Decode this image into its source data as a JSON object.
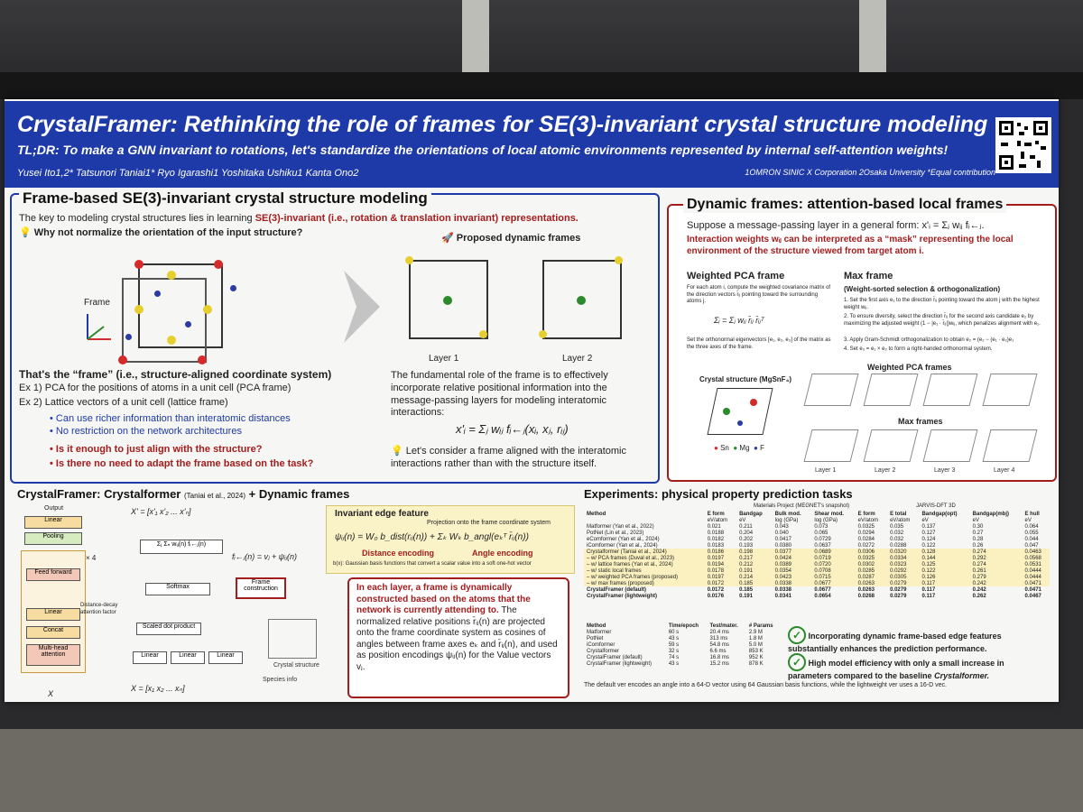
{
  "header": {
    "title": "CrystalFramer: Rethinking the role of frames for SE(3)-invariant crystal structure modeling",
    "tldr": "TL;DR: To make a GNN invariant to rotations, let's standardize the orientations of local atomic environments represented by internal self-attention weights!",
    "authors": "Yusei Ito1,2*     Tatsunori Taniai1*     Ryo Igarashi1     Yoshitaka Ushiku1     Kanta Ono2",
    "affiliations": "1OMRON SINIC X Corporation    2Osaka University    *Equal contribution"
  },
  "section1": {
    "title": "Frame-based SE(3)-invariant crystal structure modeling",
    "intro": "The key to modeling crystal structures lies in learning",
    "intro_red": "SE(3)-invariant (i.e., rotation & translation invariant) representations.",
    "question": "Why not normalize the orientation of the input structure?",
    "frame_label": "Frame",
    "proposed": "Proposed dynamic frames",
    "layer1": "Layer 1",
    "layer2": "Layer 2",
    "frame_def": "That's the “frame” (i.e., structure-aligned coordinate  system)",
    "ex1": "Ex 1) PCA for the positions of atoms in a unit cell (PCA frame)",
    "ex2": "Ex 2) Lattice vectors of a unit cell (lattice frame)",
    "pro1": "• Can use richer information than interatomic distances",
    "pro2": "• No restriction on the network architectures",
    "con1": "• Is it enough to just align with the structure?",
    "con2": "• Is there no need to adapt the frame based on the task?",
    "role": "The fundamental role of the frame is to effectively incorporate relative positional information into the message-passing layers for modeling interatomic interactions:",
    "formula": "x'ᵢ = Σⱼ wᵢⱼ fᵢ←ⱼ(xᵢ, xⱼ, rᵢⱼ)",
    "consider": "Let's consider a frame aligned with the interatomic interactions rather than with the structure itself."
  },
  "section2": {
    "title": "Dynamic frames: attention-based local frames",
    "line1": "Suppose a message-passing layer in a general form: x'ᵢ = Σⱼ wᵢⱼ fᵢ←ⱼ.",
    "line2": "Interaction weights wᵢⱼ can be interpreted as a “mask” representing the local environment of the structure viewed from target atom i.",
    "pca_title": "Weighted PCA frame",
    "pca_text": "For each atom i, compute the weighted covariance matrix of the direction vectors r̄ᵢⱼ pointing toward the surrounding atoms j.",
    "pca_formula": "Σᵢ = Σⱼ wᵢⱼ r̄ᵢⱼ r̄ᵢⱼᵀ",
    "pca_text2": "Set the orthonormal eigenvectors [e₁, e₂, e₃] of the matrix as the three axes of the frame.",
    "max_title": "Max frame",
    "max_sub": "(Weight-sorted selection & orthogonalization)",
    "max1": "1.  Set the first axis e₁ to the direction r̄ᵢⱼ pointing toward the atom j with the highest weight wᵢⱼ.",
    "max2": "2.  To ensure diversity, select the direction r̄ᵢⱼ for the second axis candidate e₂ by maximizing the adjusted weight (1 − |e₁ · r̄ᵢⱼ|)wᵢⱼ, which penalizes alignment with e₁.",
    "max3": "3.  Apply Gram-Schmidt orthogonalization to obtain e₂ = (e₂ − (e₁ · e₂)e₁",
    "max4": "4.  Set e₃ = e₁ × e₂ to form a right-handed orthonormal system.",
    "crystal": "Crystal structure (MgSnF₄)",
    "weighted_pca_frames": "Weighted PCA frames",
    "max_frames": "Max frames",
    "legend": [
      "Sn",
      "Mg",
      "F"
    ],
    "layers": [
      "Layer 1",
      "Layer 2",
      "Layer 3",
      "Layer 4"
    ]
  },
  "section3": {
    "title": "CrystalFramer: Crystalformer",
    "cite": "(Taniai et al., 2024)",
    "plus": "+ Dynamic frames",
    "blocks": [
      "Output",
      "Linear",
      "Pooling",
      "Feed forward",
      "Linear",
      "Concat",
      "Multi-head attention"
    ],
    "times4": "× 4",
    "x_label": "X",
    "xp": "X' = [x'₁   x'₂   ...   x'ₙ]",
    "xin": "X = [x₁   x₂   ...   xₙ]",
    "softmax": "Softmax",
    "sdp": "Scaled dot product",
    "linear": "Linear",
    "frame_construction": "Frame construction",
    "distance_decay": "Distance-decay attention factor",
    "crystal_structure": "Crystal structure",
    "species_info": "Species info",
    "f_formula": "fᵢ←ⱼ(n) = vⱼ + ψᵢⱼ(n)",
    "edge_title": "Invariant edge feature",
    "edge_proj": "Projection onto the frame coordinate system",
    "edge_formula": "ψᵢⱼ(n) = W₀ b_dist(rᵢⱼ(n)) + Σₖ Wₖ b_angl(eₖᵀ r̄ᵢⱼ(n))",
    "dist_enc": "Distance encoding",
    "angle_enc": "Angle encoding",
    "basis": "b(x): Gaussian basis functions that convert a scalar value into a soft one-hot vector",
    "explain_red": "In each layer, a frame is dynamically constructed based on the atoms that the network is currently attending to.",
    "explain": "The normalized relative positions r̄ᵢⱼ(n) are projected onto the frame coordinate system as cosines of angles between frame axes eₖ and r̄ᵢⱼ(n), and used as position encodings ψᵢⱼ(n) for the Value vectors vⱼ."
  },
  "section4": {
    "title": "Experiments: physical property prediction tasks",
    "group1": "Materials Project (MEGNET's snapshot)",
    "group2": "JARVIS-DFT 3D",
    "cols": [
      "Method",
      "E form",
      "Bandgap",
      "Bulk mod.",
      "Shear mod.",
      "E form",
      "E total",
      "Bandgap(opt)",
      "Bandgap(mbj)",
      "E hull"
    ],
    "units": [
      "",
      "eV/atom",
      "eV",
      "log (GPa)",
      "log (GPa)",
      "eV/atom",
      "eV/atom",
      "eV",
      "eV",
      "eV"
    ],
    "rows": [
      [
        "Matformer (Yan et al., 2022)",
        "0.021",
        "0.211",
        "0.043",
        "0.073",
        "0.0325",
        "0.035",
        "0.137",
        "0.30",
        "0.064"
      ],
      [
        "PotNet (Lin et al., 2023)",
        "0.0188",
        "0.204",
        "0.040",
        "0.065",
        "0.0294",
        "0.032",
        "0.127",
        "0.27",
        "0.055"
      ],
      [
        "eComformer (Yan et al., 2024)",
        "0.0182",
        "0.202",
        "0.0417",
        "0.0729",
        "0.0284",
        "0.032",
        "0.124",
        "0.28",
        "0.044"
      ],
      [
        "iComformer (Yan et al., 2024)",
        "0.0183",
        "0.193",
        "0.0380",
        "0.0637",
        "0.0272",
        "0.0288",
        "0.122",
        "0.26",
        "0.047"
      ],
      [
        "Crystalformer (Taniai et al., 2024)",
        "0.0186",
        "0.198",
        "0.0377",
        "0.0689",
        "0.0306",
        "0.0320",
        "0.128",
        "0.274",
        "0.0463"
      ],
      [
        "– w/ PCA frames (Duval et al., 2023)",
        "0.0197",
        "0.217",
        "0.0424",
        "0.0719",
        "0.0325",
        "0.0334",
        "0.144",
        "0.292",
        "0.0568"
      ],
      [
        "– w/ lattice frames (Yan et al., 2024)",
        "0.0194",
        "0.212",
        "0.0389",
        "0.0720",
        "0.0302",
        "0.0323",
        "0.125",
        "0.274",
        "0.0531"
      ],
      [
        "– w/ static local frames",
        "0.0178",
        "0.191",
        "0.0354",
        "0.0708",
        "0.0285",
        "0.0292",
        "0.122",
        "0.261",
        "0.0444"
      ],
      [
        "– w/ weighted PCA frames (proposed)",
        "0.0197",
        "0.214",
        "0.0423",
        "0.0715",
        "0.0287",
        "0.0305",
        "0.126",
        "0.279",
        "0.0444"
      ],
      [
        "– w/ max frames (proposed)",
        "0.0172",
        "0.185",
        "0.0338",
        "0.0677",
        "0.0263",
        "0.0279",
        "0.117",
        "0.242",
        "0.0471"
      ],
      [
        "CrystalFramer (default)",
        "0.0172",
        "0.185",
        "0.0338",
        "0.0677",
        "0.0263",
        "0.0279",
        "0.117",
        "0.242",
        "0.0471"
      ],
      [
        "CrystalFramer (lightweight)",
        "0.0176",
        "0.191",
        "0.0341",
        "0.0654",
        "0.0268",
        "0.0279",
        "0.117",
        "0.262",
        "0.0467"
      ]
    ],
    "eff_cols": [
      "Method",
      "Time/epoch",
      "Test/mater.",
      "# Params"
    ],
    "eff_rows": [
      [
        "Matformer",
        "60 s",
        "20.4 ms",
        "2.9 M"
      ],
      [
        "PotNet",
        "43 s",
        "313 ms",
        "1.8 M"
      ],
      [
        "iComformer",
        "59 s",
        "54.8 ms",
        "5.0 M"
      ],
      [
        "Crystalformer",
        "32 s",
        "6.6 ms",
        "853 K"
      ],
      [
        "CrystalFramer (default)",
        "74 s",
        "16.8 ms",
        "952 K"
      ],
      [
        "CrystalFramer (lightweight)",
        "43 s",
        "15.2 ms",
        "878 K"
      ]
    ],
    "finding1": "Incorporating dynamic frame-based edge features substantially enhances the prediction performance.",
    "finding2_a": "High model efficiency with only a small increase in parameters compared to the baseline",
    "finding2_b": "Crystalformer.",
    "footnote": "The default ver encodes an angle into a 64-D vector using 64 Gaussian basis functions, while the lightweight ver uses a 16-D vec."
  },
  "colors": {
    "header": "#1d3aa8",
    "accent_red": "#a31d1d",
    "highlight": "#fbf0c0"
  },
  "icons": [
    "qr-code-icon",
    "lightbulb-icon",
    "rocket-icon",
    "check-icon",
    "arrow-right-icon"
  ]
}
